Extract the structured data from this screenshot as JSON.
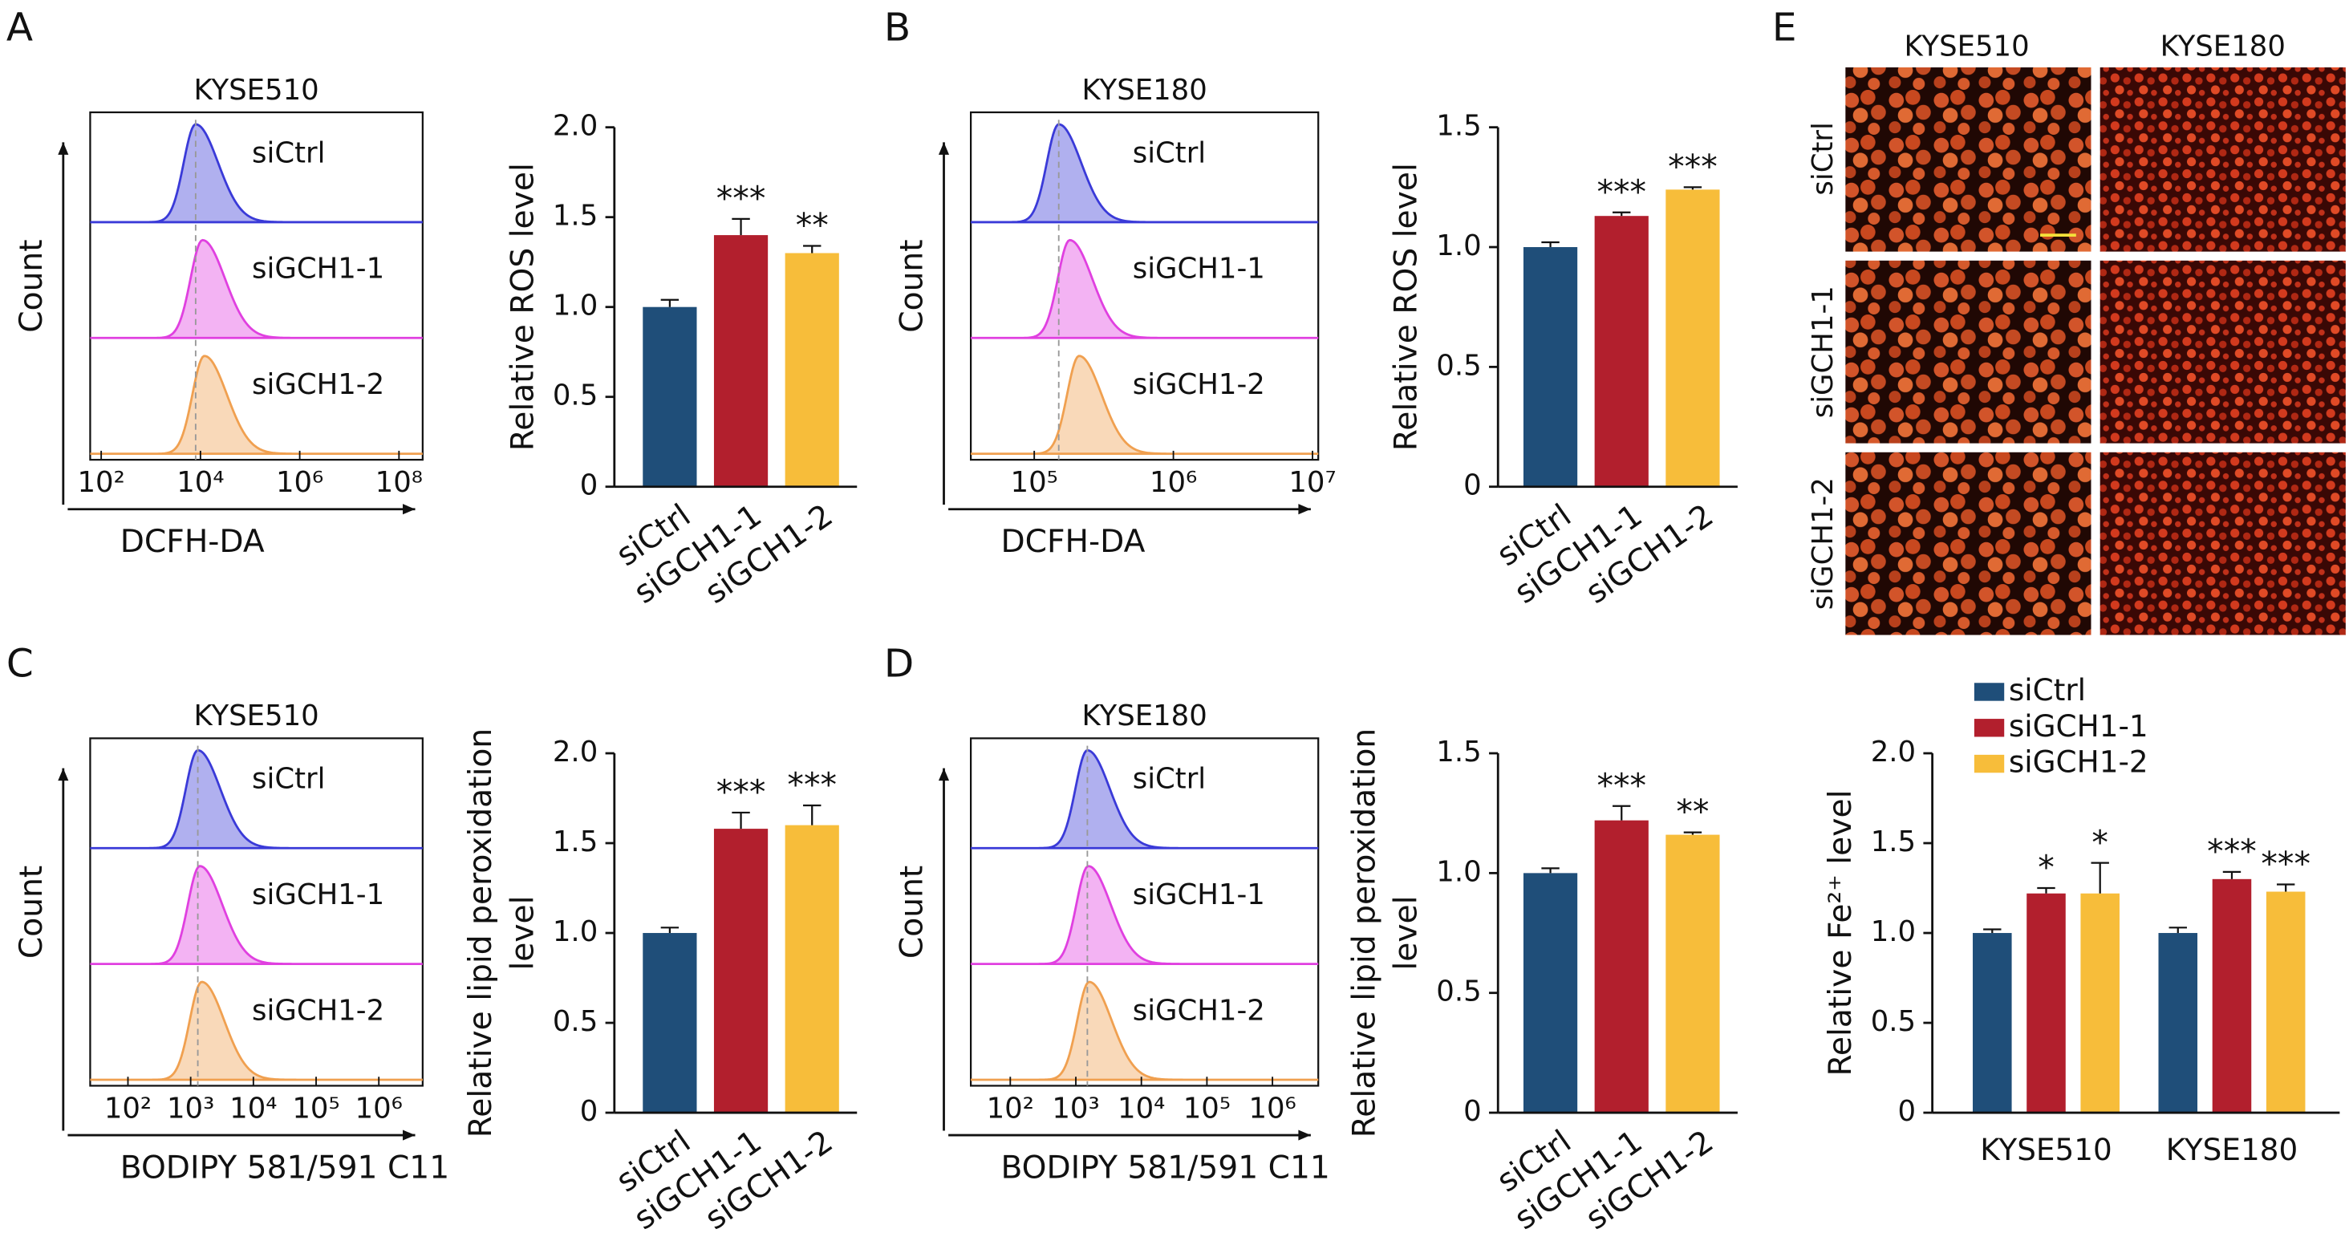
{
  "panel_labels": [
    "A",
    "B",
    "C",
    "D",
    "E"
  ],
  "image_grid": {
    "columns": [
      "KYSE510",
      "KYSE180"
    ],
    "rows": [
      "siCtrl",
      "siGCH1-1",
      "siGCH1-2"
    ]
  },
  "chart_data": [
    {
      "type": "histogram-overlay",
      "title": "KYSE510",
      "x_label": "DCFH-DA",
      "y_label": "Count",
      "log_x": true,
      "xlim": [
        60,
        300000000
      ],
      "xticks": [
        {
          "value": 100,
          "label": "10²"
        },
        {
          "value": 10000,
          "label": "10⁴"
        },
        {
          "value": 1000000,
          "label": "10⁶"
        },
        {
          "value": 100000000,
          "label": "10⁸"
        }
      ],
      "series": [
        {
          "name": "siCtrl",
          "color": "#3a3ad8",
          "peak": 8000
        },
        {
          "name": "siGCH1-1",
          "color": "#e040e0",
          "peak": 11000
        },
        {
          "name": "siGCH1-2",
          "color": "#f0a050",
          "peak": 12000
        }
      ]
    },
    {
      "type": "bar",
      "y_label": [
        "Relative ROS level"
      ],
      "categories": [
        "siCtrl",
        "siGCH1-1",
        "siGCH1-2"
      ],
      "values": [
        1.0,
        1.4,
        1.3
      ],
      "errors": [
        0.04,
        0.09,
        0.04
      ],
      "significance": [
        null,
        "***",
        "**"
      ],
      "colors": [
        "#1f4e79",
        "#b21f2d",
        "#f7bd3a"
      ],
      "ylim": [
        0,
        2
      ],
      "yticks": [
        0,
        0.5,
        {
          "value": 1,
          "label": "1.0"
        },
        1.5,
        {
          "value": 2,
          "label": "2.0"
        }
      ]
    },
    {
      "type": "histogram-overlay",
      "title": "KYSE180",
      "x_label": "DCFH-DA",
      "y_label": "Count",
      "log_x": true,
      "xlim": [
        35000,
        11000000
      ],
      "xticks": [
        {
          "value": 100000,
          "label": "10⁵"
        },
        {
          "value": 1000000,
          "label": "10⁶"
        },
        {
          "value": 10000000,
          "label": "10⁷"
        }
      ],
      "series": [
        {
          "name": "siCtrl",
          "color": "#3a3ad8",
          "peak": 150000
        },
        {
          "name": "siGCH1-1",
          "color": "#e040e0",
          "peak": 180000
        },
        {
          "name": "siGCH1-2",
          "color": "#f0a050",
          "peak": 210000
        }
      ]
    },
    {
      "type": "bar",
      "y_label": [
        "Relative ROS level"
      ],
      "categories": [
        "siCtrl",
        "siGCH1-1",
        "siGCH1-2"
      ],
      "values": [
        1.0,
        1.13,
        1.24
      ],
      "errors": [
        0.02,
        0.015,
        0.01
      ],
      "significance": [
        null,
        "***",
        "***"
      ],
      "colors": [
        "#1f4e79",
        "#b21f2d",
        "#f7bd3a"
      ],
      "ylim": [
        0,
        1.5
      ],
      "yticks": [
        0,
        0.5,
        {
          "value": 1,
          "label": "1.0"
        },
        1.5
      ]
    },
    {
      "type": "histogram-overlay",
      "title": "KYSE510",
      "x_label": "BODIPY 581/591 C11",
      "y_label": "Count",
      "log_x": true,
      "xlim": [
        25,
        5000000
      ],
      "xticks": [
        {
          "value": 100,
          "label": "10²"
        },
        {
          "value": 1000,
          "label": "10³"
        },
        {
          "value": 10000,
          "label": "10⁴"
        },
        {
          "value": 100000,
          "label": "10⁵"
        },
        {
          "value": 1000000,
          "label": "10⁶"
        }
      ],
      "series": [
        {
          "name": "siCtrl",
          "color": "#3a3ad8",
          "peak": 1300
        },
        {
          "name": "siGCH1-1",
          "color": "#e040e0",
          "peak": 1400
        },
        {
          "name": "siGCH1-2",
          "color": "#f0a050",
          "peak": 1500
        }
      ]
    },
    {
      "type": "bar",
      "y_label": [
        "Relative lipid peroxidation",
        "level"
      ],
      "categories": [
        "siCtrl",
        "siGCH1-1",
        "siGCH1-2"
      ],
      "values": [
        1.0,
        1.58,
        1.6
      ],
      "errors": [
        0.03,
        0.09,
        0.11
      ],
      "significance": [
        null,
        "***",
        "***"
      ],
      "colors": [
        "#1f4e79",
        "#b21f2d",
        "#f7bd3a"
      ],
      "ylim": [
        0,
        2
      ],
      "yticks": [
        0,
        0.5,
        {
          "value": 1,
          "label": "1.0"
        },
        1.5,
        {
          "value": 2,
          "label": "2.0"
        }
      ]
    },
    {
      "type": "histogram-overlay",
      "title": "KYSE180",
      "x_label": "BODIPY 581/591 C11",
      "y_label": "Count",
      "log_x": true,
      "xlim": [
        25,
        5000000
      ],
      "xticks": [
        {
          "value": 100,
          "label": "10²"
        },
        {
          "value": 1000,
          "label": "10³"
        },
        {
          "value": 10000,
          "label": "10⁴"
        },
        {
          "value": 100000,
          "label": "10⁵"
        },
        {
          "value": 1000000,
          "label": "10⁶"
        }
      ],
      "series": [
        {
          "name": "siCtrl",
          "color": "#3a3ad8",
          "peak": 1500
        },
        {
          "name": "siGCH1-1",
          "color": "#e040e0",
          "peak": 1550
        },
        {
          "name": "siGCH1-2",
          "color": "#f0a050",
          "peak": 1600
        }
      ]
    },
    {
      "type": "bar",
      "y_label": [
        "Relative lipid peroxidation",
        "level"
      ],
      "categories": [
        "siCtrl",
        "siGCH1-1",
        "siGCH1-2"
      ],
      "values": [
        1.0,
        1.22,
        1.16
      ],
      "errors": [
        0.02,
        0.06,
        0.01
      ],
      "significance": [
        null,
        "***",
        "**"
      ],
      "colors": [
        "#1f4e79",
        "#b21f2d",
        "#f7bd3a"
      ],
      "ylim": [
        0,
        1.5
      ],
      "yticks": [
        0,
        0.5,
        {
          "value": 1,
          "label": "1.0"
        },
        1.5
      ]
    },
    {
      "type": "grouped-bar",
      "y_label": [
        "Relative Fe²⁺ level"
      ],
      "categories": [
        "KYSE510",
        "KYSE180"
      ],
      "legend": "top-left",
      "ylim": [
        0,
        2
      ],
      "yticks": [
        0,
        0.5,
        {
          "value": 1,
          "label": "1.0"
        },
        1.5,
        {
          "value": 2,
          "label": "2.0"
        }
      ],
      "series": [
        {
          "name": "siCtrl",
          "color": "#1f4e79",
          "values": [
            1.0,
            1.0
          ],
          "errors": [
            0.02,
            0.03
          ],
          "significance": [
            null,
            null
          ]
        },
        {
          "name": "siGCH1-1",
          "color": "#b21f2d",
          "values": [
            1.22,
            1.3
          ],
          "errors": [
            0.03,
            0.04
          ],
          "significance": [
            "*",
            "***"
          ]
        },
        {
          "name": "siGCH1-2",
          "color": "#f7bd3a",
          "values": [
            1.22,
            1.23
          ],
          "errors": [
            0.17,
            0.04
          ],
          "significance": [
            "*",
            "***"
          ]
        }
      ]
    }
  ]
}
